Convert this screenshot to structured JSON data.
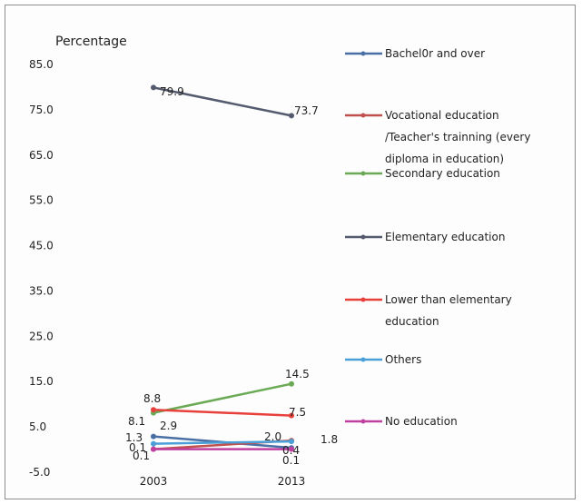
{
  "chart_data": {
    "type": "line",
    "ylabel": "Percentage",
    "categories": [
      "2003",
      "2013"
    ],
    "ylim": [
      -5,
      85
    ],
    "yticks": [
      "85.0",
      "75.0",
      "65.0",
      "55.0",
      "45.0",
      "35.0",
      "25.0",
      "15.0",
      "5.0",
      "-5.0"
    ],
    "grid": false,
    "legend_position": "right",
    "series": [
      {
        "name": "Bachel0r and over",
        "color": "#4a6fa5",
        "values": [
          2.9,
          0.4
        ]
      },
      {
        "name": "Vocational education /Teacher's trainning (every diploma in education)",
        "color": "#c0504d",
        "values": [
          0.1,
          2.0
        ]
      },
      {
        "name": "Secondary education",
        "color": "#6aaa55",
        "values": [
          8.1,
          14.5
        ]
      },
      {
        "name": "Elementary education",
        "color": "#555b6e",
        "values": [
          79.9,
          73.7
        ]
      },
      {
        "name": "Lower than elementary education",
        "color": "#e8413c",
        "values": [
          8.8,
          7.5
        ]
      },
      {
        "name": "Others",
        "color": "#4a9fd8",
        "values": [
          1.3,
          1.8
        ]
      },
      {
        "name": "No education",
        "color": "#c040a0",
        "values": [
          0.1,
          0.1
        ]
      }
    ],
    "legend_lines": [
      [
        "Bachel0r and over"
      ],
      [
        "Vocational education",
        "/Teacher's trainning (every",
        "diploma in education)"
      ],
      [
        "Secondary education"
      ],
      [
        "Elementary education"
      ],
      [
        "Lower than elementary",
        "education"
      ],
      [
        "Others"
      ],
      [
        "No education"
      ]
    ],
    "data_labels": [
      {
        "text": "79.9"
      },
      {
        "text": "73.7"
      },
      {
        "text": "14.5"
      },
      {
        "text": "7.5"
      },
      {
        "text": "8.8"
      },
      {
        "text": "8.1"
      },
      {
        "text": "1.3"
      },
      {
        "text": "2.9"
      },
      {
        "text": "0.1"
      },
      {
        "text": "0.1"
      },
      {
        "text": "2.0"
      },
      {
        "text": "1.8"
      },
      {
        "text": "0.4"
      },
      {
        "text": "0.1"
      }
    ]
  }
}
